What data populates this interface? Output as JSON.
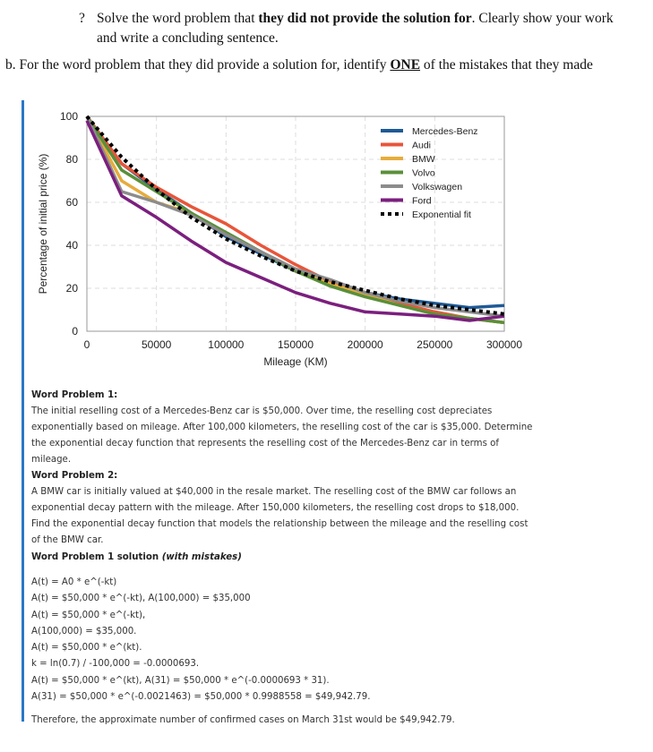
{
  "instructions": {
    "bullet": "?",
    "item_a_pre": "Solve the word problem that ",
    "item_a_bold": "they did not provide the solution for",
    "item_a_post": ". Clearly show your work and write a concluding sentence.",
    "item_b_pre": "b. For the word problem that they did provide a solution for, identify ",
    "item_b_bold": "ONE",
    "item_b_post": " of the mistakes that they made"
  },
  "chart_data": {
    "type": "line",
    "xlabel": "Mileage (KM)",
    "ylabel": "Percentage of initial price (%)",
    "xlim": [
      0,
      300000
    ],
    "ylim": [
      0,
      100
    ],
    "xticks": [
      "0",
      "50000",
      "100000",
      "150000",
      "200000",
      "250000",
      "300000"
    ],
    "yticks": [
      "0",
      "20",
      "40",
      "60",
      "80",
      "100"
    ],
    "grid": true,
    "legend": "top-right",
    "x": [
      0,
      25000,
      50000,
      75000,
      100000,
      125000,
      150000,
      175000,
      200000,
      225000,
      250000,
      275000,
      300000
    ],
    "series": [
      {
        "name": "Mercedes-Benz",
        "color": "#1f5a96",
        "values": [
          100,
          78,
          66,
          55,
          44,
          36,
          28,
          22,
          18,
          15,
          13,
          11,
          12
        ]
      },
      {
        "name": "Audi",
        "color": "#e8553a",
        "values": [
          100,
          78,
          67,
          58,
          50,
          40,
          31,
          23,
          18,
          13,
          9,
          6,
          4
        ]
      },
      {
        "name": "BMW",
        "color": "#e6ac3c",
        "values": [
          100,
          70,
          60,
          55,
          45,
          37,
          28,
          22,
          17,
          12,
          8,
          6,
          4
        ]
      },
      {
        "name": "Volvo",
        "color": "#5a8f3a",
        "values": [
          100,
          75,
          65,
          55,
          46,
          37,
          28,
          21,
          16,
          12,
          8,
          6,
          4
        ]
      },
      {
        "name": "Volkswagen",
        "color": "#8c8c8c",
        "values": [
          100,
          65,
          60,
          54,
          45,
          37,
          29,
          24,
          18,
          14,
          11,
          9,
          7
        ]
      },
      {
        "name": "Ford",
        "color": "#7b1f7e",
        "values": [
          98,
          63,
          53,
          42,
          32,
          25,
          18,
          13,
          9,
          8,
          7,
          5,
          7
        ]
      },
      {
        "name": "Exponential fit",
        "color": "#000000",
        "dashed": true,
        "values": [
          100,
          81,
          66,
          53,
          43,
          35,
          28,
          23,
          19,
          15,
          12,
          10,
          8
        ]
      }
    ]
  },
  "wp1": {
    "title": "Word Problem 1:",
    "body": "The initial reselling cost of a Mercedes-Benz car is $50,000. Over time, the reselling cost depreciates exponentially based on mileage. After 100,000 kilometers, the reselling cost of the car is $35,000. Determine the exponential decay function that represents the reselling cost of the Mercedes-Benz car in terms of mileage."
  },
  "wp2": {
    "title": "Word Problem 2:",
    "body": "A BMW car is initially valued at $40,000 in the resale market. The reselling cost of the BMW car follows an exponential decay pattern with the mileage. After 150,000 kilometers, the reselling cost drops to $18,000. Find the exponential decay function that models the relationship between the mileage and the reselling cost of the BMW car."
  },
  "solution": {
    "title": "Word Problem 1 solution ",
    "title_em": "(with mistakes)",
    "lines": [
      "A(t) = A0 * e^(-kt)",
      "A(t) = $50,000 * e^(-kt), A(100,000) = $35,000",
      "A(t) = $50,000 * e^(-kt),",
      "A(100,000) = $35,000.",
      "A(t) = $50,000 * e^(kt).",
      "k = ln(0.7) / -100,000 = -0.0000693.",
      "A(t) = $50,000 * e^(kt), A(31) = $50,000 * e^(-0.0000693 * 31).",
      "A(31) = $50,000 * e^(-0.0021463) = $50,000 * 0.9988558 = $49,942.79."
    ],
    "conclusion": "Therefore, the approximate number of confirmed cases on March 31st would be $49,942.79."
  }
}
